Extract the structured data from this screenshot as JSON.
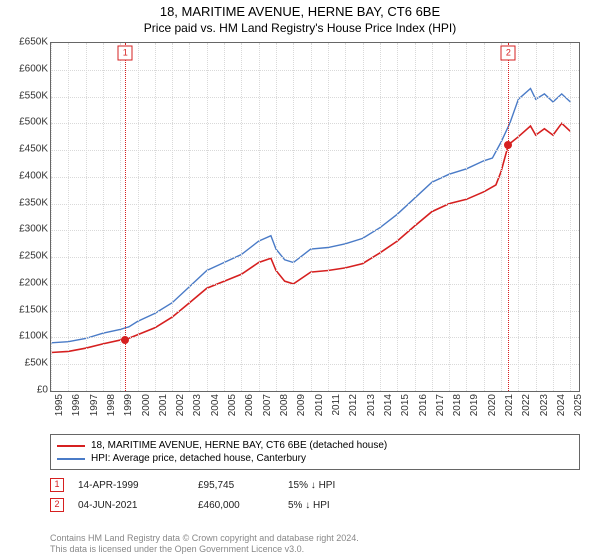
{
  "title": "18, MARITIME AVENUE, HERNE BAY, CT6 6BE",
  "subtitle": "Price paid vs. HM Land Registry's House Price Index (HPI)",
  "chart": {
    "type": "line",
    "background_color": "#ffffff",
    "grid_color": "#d9d9d9",
    "axis_color": "#666666",
    "tick_fontsize": 10,
    "xlim": [
      1995,
      2025.5
    ],
    "ylim": [
      0,
      650000
    ],
    "ytick_step": 50000,
    "ytick_labels": [
      "£0",
      "£50K",
      "£100K",
      "£150K",
      "£200K",
      "£250K",
      "£300K",
      "£350K",
      "£400K",
      "£450K",
      "£500K",
      "£550K",
      "£600K",
      "£650K"
    ],
    "xticks": [
      1995,
      1996,
      1997,
      1998,
      1999,
      2000,
      2001,
      2002,
      2003,
      2004,
      2005,
      2006,
      2007,
      2008,
      2009,
      2010,
      2011,
      2012,
      2013,
      2014,
      2015,
      2016,
      2017,
      2018,
      2019,
      2020,
      2021,
      2022,
      2023,
      2024,
      2025
    ],
    "series": [
      {
        "id": "hpi",
        "label": "HPI: Average price, detached house, Canterbury",
        "color": "#4a7bc7",
        "line_width": 1.4,
        "data": [
          [
            1995,
            90000
          ],
          [
            1996,
            92000
          ],
          [
            1997,
            98000
          ],
          [
            1998,
            108000
          ],
          [
            1999,
            115000
          ],
          [
            1999.5,
            120000
          ],
          [
            2000,
            130000
          ],
          [
            2001,
            145000
          ],
          [
            2002,
            165000
          ],
          [
            2003,
            195000
          ],
          [
            2004,
            225000
          ],
          [
            2005,
            240000
          ],
          [
            2006,
            255000
          ],
          [
            2007,
            280000
          ],
          [
            2007.7,
            290000
          ],
          [
            2008,
            265000
          ],
          [
            2008.5,
            245000
          ],
          [
            2009,
            240000
          ],
          [
            2010,
            265000
          ],
          [
            2011,
            268000
          ],
          [
            2012,
            275000
          ],
          [
            2013,
            285000
          ],
          [
            2014,
            305000
          ],
          [
            2015,
            330000
          ],
          [
            2016,
            360000
          ],
          [
            2017,
            390000
          ],
          [
            2018,
            405000
          ],
          [
            2019,
            415000
          ],
          [
            2020,
            430000
          ],
          [
            2020.5,
            435000
          ],
          [
            2021,
            465000
          ],
          [
            2021.5,
            500000
          ],
          [
            2022,
            545000
          ],
          [
            2022.7,
            565000
          ],
          [
            2023,
            545000
          ],
          [
            2023.5,
            555000
          ],
          [
            2024,
            540000
          ],
          [
            2024.5,
            555000
          ],
          [
            2025,
            540000
          ]
        ]
      },
      {
        "id": "price_paid",
        "label": "18, MARITIME AVENUE, HERNE BAY, CT6 6BE (detached house)",
        "color": "#d62020",
        "line_width": 1.6,
        "data": [
          [
            1995,
            72000
          ],
          [
            1996,
            74000
          ],
          [
            1997,
            80000
          ],
          [
            1998,
            88000
          ],
          [
            1999,
            95000
          ],
          [
            1999.29,
            95745
          ],
          [
            2000,
            105000
          ],
          [
            2001,
            118000
          ],
          [
            2002,
            138000
          ],
          [
            2003,
            165000
          ],
          [
            2004,
            192000
          ],
          [
            2005,
            205000
          ],
          [
            2006,
            218000
          ],
          [
            2007,
            240000
          ],
          [
            2007.7,
            248000
          ],
          [
            2008,
            225000
          ],
          [
            2008.5,
            205000
          ],
          [
            2009,
            200000
          ],
          [
            2010,
            222000
          ],
          [
            2011,
            225000
          ],
          [
            2012,
            230000
          ],
          [
            2013,
            238000
          ],
          [
            2014,
            258000
          ],
          [
            2015,
            280000
          ],
          [
            2016,
            308000
          ],
          [
            2017,
            335000
          ],
          [
            2018,
            350000
          ],
          [
            2019,
            358000
          ],
          [
            2020,
            372000
          ],
          [
            2020.7,
            385000
          ],
          [
            2021,
            410000
          ],
          [
            2021.42,
            460000
          ],
          [
            2022,
            475000
          ],
          [
            2022.7,
            495000
          ],
          [
            2023,
            478000
          ],
          [
            2023.5,
            490000
          ],
          [
            2024,
            478000
          ],
          [
            2024.5,
            500000
          ],
          [
            2025,
            485000
          ]
        ]
      }
    ],
    "markers": [
      {
        "n": "1",
        "x": 1999.29,
        "y_dot": 95745,
        "color": "#d62020"
      },
      {
        "n": "2",
        "x": 2021.42,
        "y_dot": 460000,
        "color": "#d62020"
      }
    ],
    "vline_color": "#d62020"
  },
  "legend": {
    "items": [
      {
        "color": "#d62020",
        "label": "18, MARITIME AVENUE, HERNE BAY, CT6 6BE (detached house)"
      },
      {
        "color": "#4a7bc7",
        "label": "HPI: Average price, detached house, Canterbury"
      }
    ]
  },
  "transactions": [
    {
      "n": "1",
      "date": "14-APR-1999",
      "price": "£95,745",
      "delta": "15% ↓ HPI",
      "color": "#d62020"
    },
    {
      "n": "2",
      "date": "04-JUN-2021",
      "price": "£460,000",
      "delta": "5% ↓ HPI",
      "color": "#d62020"
    }
  ],
  "footer_line1": "Contains HM Land Registry data © Crown copyright and database right 2024.",
  "footer_line2": "This data is licensed under the Open Government Licence v3.0."
}
